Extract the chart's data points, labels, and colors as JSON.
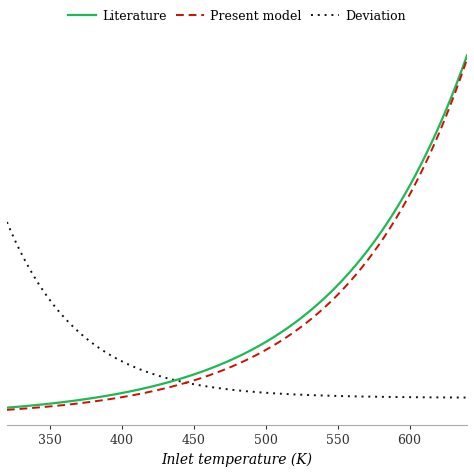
{
  "x_min": 320,
  "x_max": 640,
  "xlabel": "Inlet temperature (K)",
  "xticks": [
    350,
    400,
    450,
    500,
    550,
    600
  ],
  "literature_color": "#1db954",
  "model_color": "#cc1100",
  "deviation_color": "#111111",
  "legend_labels": [
    "Literature",
    "Present model",
    "Deviation"
  ],
  "background_color": "#ffffff",
  "lit_lw": 1.6,
  "model_lw": 1.4,
  "dev_lw": 1.4,
  "y_min": -0.02,
  "y_max": 1.05
}
